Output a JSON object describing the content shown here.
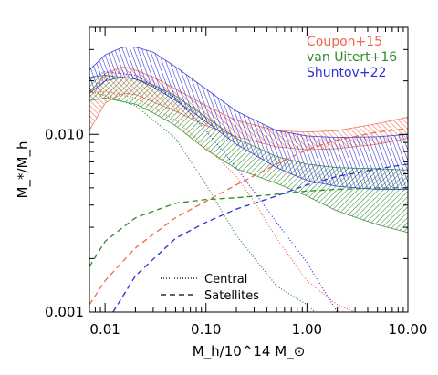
{
  "chart_data": {
    "type": "line",
    "xscale": "log",
    "yscale": "log",
    "xlim": [
      0.007,
      10.0
    ],
    "ylim": [
      0.001,
      0.04
    ],
    "xticks": [
      {
        "value": 0.01,
        "label": "0.01"
      },
      {
        "value": 0.1,
        "label": "0.10"
      },
      {
        "value": 1.0,
        "label": "1.00"
      },
      {
        "value": 10.0,
        "label": "10.00"
      }
    ],
    "yticks": [
      {
        "value": 0.001,
        "label": "0.001"
      },
      {
        "value": 0.01,
        "label": "0.010"
      }
    ],
    "xlabel": "M_h/10^14 M_⊙",
    "ylabel": "M_*/M_h",
    "grid": false,
    "legend_position": "top-right",
    "linestyle_key": [
      {
        "label": "Central",
        "style": "dotted"
      },
      {
        "label": "Satellites",
        "style": "dashed"
      }
    ],
    "series": [
      {
        "name": "Coupon+15",
        "color": "#f2664d",
        "band": {
          "x": [
            0.007,
            0.01,
            0.015,
            0.02,
            0.03,
            0.05,
            0.1,
            0.2,
            0.5,
            1.0,
            2.0,
            5.0,
            10.0
          ],
          "upper": [
            0.017,
            0.022,
            0.024,
            0.023,
            0.021,
            0.018,
            0.0145,
            0.012,
            0.0105,
            0.0103,
            0.0105,
            0.0115,
            0.0125
          ],
          "lower": [
            0.0105,
            0.015,
            0.017,
            0.0168,
            0.0152,
            0.0135,
            0.0112,
            0.0097,
            0.0085,
            0.0082,
            0.0083,
            0.0088,
            0.0095
          ]
        },
        "central": {
          "x": [
            0.007,
            0.01,
            0.02,
            0.05,
            0.1,
            0.2,
            0.3,
            0.5,
            1.0,
            2.0,
            3.0
          ],
          "y": [
            0.017,
            0.0175,
            0.016,
            0.012,
            0.0085,
            0.0058,
            0.0042,
            0.0026,
            0.0015,
            0.0011,
            0.001
          ]
        },
        "satellites": {
          "x": [
            0.007,
            0.01,
            0.02,
            0.05,
            0.1,
            0.2,
            0.5,
            1.0,
            2.0,
            5.0,
            10.0
          ],
          "y": [
            0.0011,
            0.0015,
            0.0023,
            0.0034,
            0.0042,
            0.0052,
            0.0068,
            0.0082,
            0.0093,
            0.0103,
            0.0108
          ]
        }
      },
      {
        "name": "van Uitert+16",
        "color": "#2e8b2e",
        "band": {
          "x": [
            0.007,
            0.01,
            0.02,
            0.03,
            0.05,
            0.1,
            0.2,
            0.5,
            1.0,
            2.0,
            5.0,
            10.0
          ],
          "upper": [
            0.021,
            0.0215,
            0.0205,
            0.019,
            0.0165,
            0.0125,
            0.0095,
            0.0075,
            0.0068,
            0.0065,
            0.0064,
            0.0063
          ],
          "lower": [
            0.0155,
            0.016,
            0.0148,
            0.0132,
            0.0112,
            0.0082,
            0.0064,
            0.0053,
            0.0045,
            0.0037,
            0.0031,
            0.0028
          ]
        },
        "central": {
          "x": [
            0.007,
            0.01,
            0.02,
            0.05,
            0.1,
            0.2,
            0.5,
            1.0,
            1.2
          ],
          "y": [
            0.0175,
            0.0165,
            0.0145,
            0.0095,
            0.0052,
            0.0027,
            0.0014,
            0.0011,
            0.001
          ]
        },
        "satellites": {
          "x": [
            0.007,
            0.01,
            0.02,
            0.05,
            0.1,
            0.2,
            0.5,
            1.0,
            2.0,
            5.0,
            10.0
          ],
          "y": [
            0.0018,
            0.0025,
            0.0034,
            0.0041,
            0.0043,
            0.0044,
            0.0046,
            0.0048,
            0.0049,
            0.005,
            0.005
          ]
        }
      },
      {
        "name": "Shuntov+22",
        "color": "#2e2ed6",
        "band": {
          "x": [
            0.007,
            0.01,
            0.015,
            0.02,
            0.03,
            0.05,
            0.1,
            0.2,
            0.5,
            1.0,
            2.0,
            5.0,
            10.0
          ],
          "upper": [
            0.023,
            0.028,
            0.031,
            0.031,
            0.029,
            0.024,
            0.018,
            0.0135,
            0.0105,
            0.0098,
            0.0096,
            0.0097,
            0.01
          ],
          "lower": [
            0.017,
            0.02,
            0.021,
            0.0205,
            0.0185,
            0.0155,
            0.0118,
            0.0088,
            0.0065,
            0.0055,
            0.0051,
            0.0049,
            0.0049
          ]
        },
        "central": {
          "x": [
            0.007,
            0.01,
            0.02,
            0.05,
            0.1,
            0.2,
            0.5,
            1.0,
            1.5,
            2.0
          ],
          "y": [
            0.0205,
            0.0225,
            0.0215,
            0.016,
            0.0105,
            0.0065,
            0.0032,
            0.0019,
            0.0013,
            0.001
          ]
        },
        "satellites": {
          "x": [
            0.012,
            0.02,
            0.05,
            0.1,
            0.2,
            0.5,
            1.0,
            2.0,
            5.0,
            10.0
          ],
          "y": [
            0.001,
            0.0016,
            0.0026,
            0.0032,
            0.0038,
            0.0045,
            0.0052,
            0.0058,
            0.0064,
            0.0068
          ]
        }
      }
    ]
  }
}
